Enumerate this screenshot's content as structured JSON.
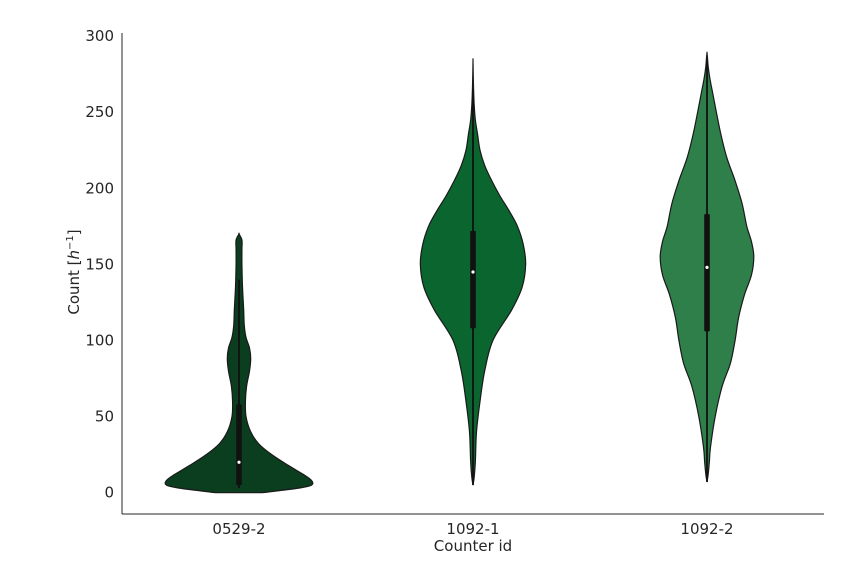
{
  "chart_data": {
    "type": "violin",
    "title": "",
    "xlabel": "Counter id",
    "ylabel_prefix": "Count [",
    "ylabel_var": "h",
    "ylabel_sup": "−1",
    "ylabel_suffix": "]",
    "ylim": [
      -14,
      302
    ],
    "yticks": [
      0,
      50,
      100,
      150,
      200,
      250,
      300
    ],
    "grid": false,
    "categories": [
      "0529-2",
      "1092-1",
      "1092-2"
    ],
    "series": [
      {
        "color": "#0b3d1f",
        "min": 3,
        "max": 170,
        "q1": 5,
        "median": 20,
        "q3": 58,
        "whisker_low": 3,
        "whisker_high": 140,
        "density_profile": [
          [
            0,
            0.2
          ],
          [
            3,
            0.51
          ],
          [
            5,
            0.62
          ],
          [
            8,
            0.62
          ],
          [
            12,
            0.55
          ],
          [
            18,
            0.42
          ],
          [
            25,
            0.28
          ],
          [
            32,
            0.17
          ],
          [
            40,
            0.1
          ],
          [
            50,
            0.06
          ],
          [
            60,
            0.055
          ],
          [
            70,
            0.065
          ],
          [
            80,
            0.09
          ],
          [
            88,
            0.1
          ],
          [
            95,
            0.09
          ],
          [
            102,
            0.06
          ],
          [
            110,
            0.045
          ],
          [
            120,
            0.04
          ],
          [
            135,
            0.03
          ],
          [
            150,
            0.025
          ],
          [
            160,
            0.025
          ],
          [
            166,
            0.025
          ],
          [
            170,
            0.0
          ]
        ]
      },
      {
        "color": "#0b652f",
        "min": 5,
        "max": 284,
        "q1": 108,
        "median": 145,
        "q3": 172,
        "whisker_low": 5,
        "whisker_high": 265,
        "density_profile": [
          [
            5,
            0.0
          ],
          [
            10,
            0.01
          ],
          [
            20,
            0.02
          ],
          [
            40,
            0.03
          ],
          [
            60,
            0.06
          ],
          [
            80,
            0.1
          ],
          [
            100,
            0.17
          ],
          [
            120,
            0.33
          ],
          [
            135,
            0.42
          ],
          [
            150,
            0.45
          ],
          [
            163,
            0.43
          ],
          [
            175,
            0.38
          ],
          [
            185,
            0.31
          ],
          [
            195,
            0.23
          ],
          [
            205,
            0.16
          ],
          [
            215,
            0.1
          ],
          [
            225,
            0.06
          ],
          [
            235,
            0.04
          ],
          [
            245,
            0.02
          ],
          [
            255,
            0.01
          ],
          [
            265,
            0.005
          ],
          [
            275,
            0.002
          ],
          [
            284,
            0.0
          ]
        ]
      },
      {
        "color": "#2e7f49",
        "min": 7,
        "max": 289,
        "q1": 106,
        "median": 148,
        "q3": 183,
        "whisker_low": 7,
        "whisker_high": 284,
        "density_profile": [
          [
            7,
            0.0
          ],
          [
            12,
            0.01
          ],
          [
            20,
            0.02
          ],
          [
            30,
            0.03
          ],
          [
            50,
            0.07
          ],
          [
            70,
            0.13
          ],
          [
            85,
            0.2
          ],
          [
            100,
            0.24
          ],
          [
            115,
            0.27
          ],
          [
            130,
            0.32
          ],
          [
            143,
            0.38
          ],
          [
            155,
            0.4
          ],
          [
            165,
            0.38
          ],
          [
            175,
            0.34
          ],
          [
            190,
            0.3
          ],
          [
            205,
            0.24
          ],
          [
            220,
            0.17
          ],
          [
            235,
            0.12
          ],
          [
            250,
            0.08
          ],
          [
            262,
            0.05
          ],
          [
            272,
            0.025
          ],
          [
            280,
            0.01
          ],
          [
            286,
            0.004
          ],
          [
            289,
            0.0
          ]
        ]
      }
    ]
  }
}
